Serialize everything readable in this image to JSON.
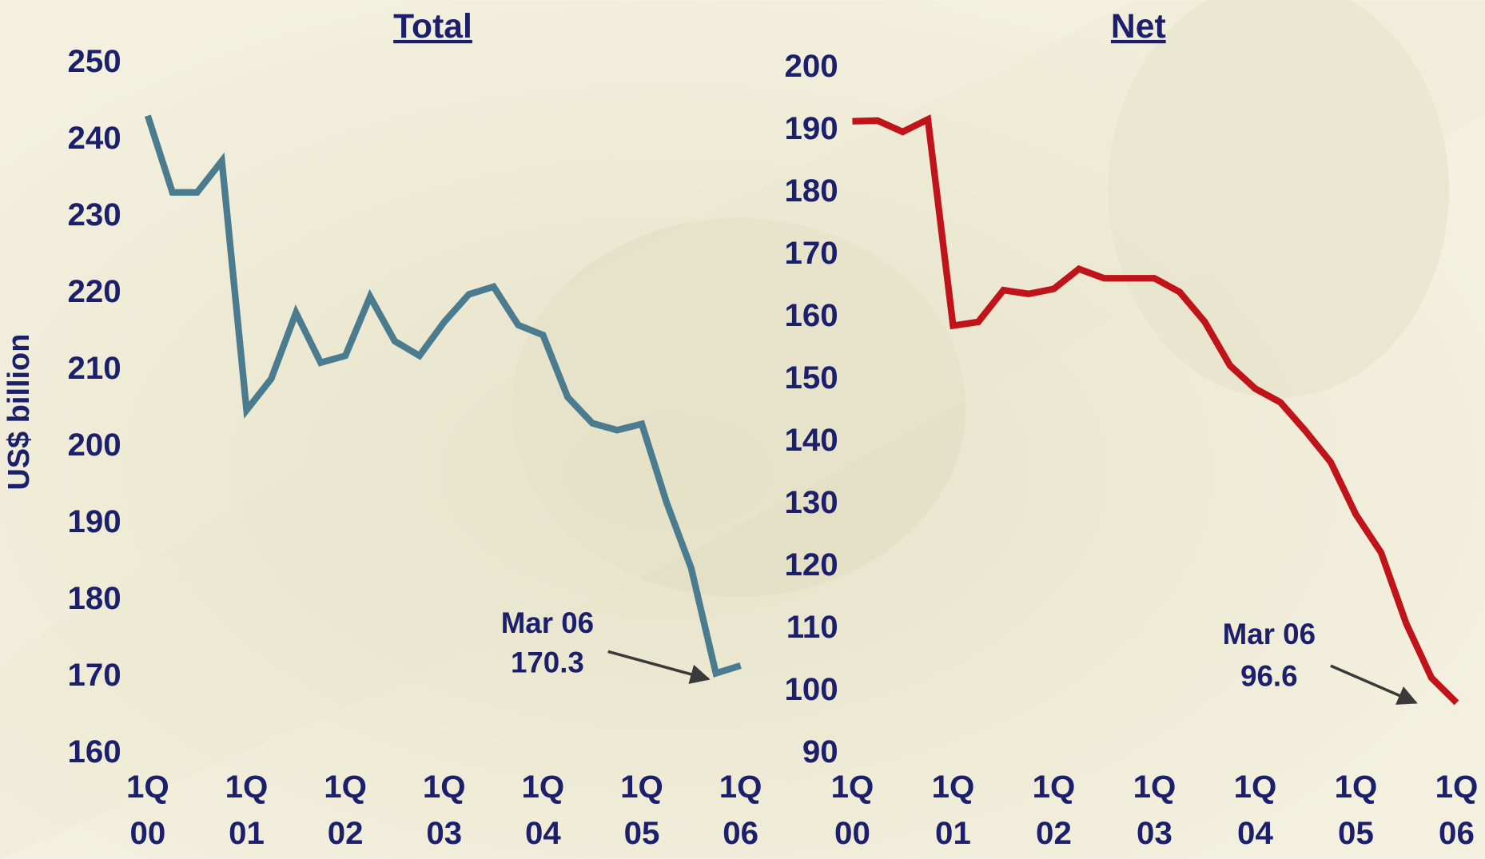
{
  "chart_data": [
    {
      "type": "line",
      "title": "Total",
      "y_label": "US$ billion",
      "categories": [
        "1Q 00",
        null,
        null,
        null,
        "1Q 01",
        null,
        null,
        null,
        "1Q 02",
        null,
        null,
        null,
        "1Q 03",
        null,
        null,
        null,
        "1Q 04",
        null,
        null,
        null,
        "1Q 05",
        null,
        null,
        null,
        "1Q 06"
      ],
      "series": [
        {
          "name": "Total",
          "color": "#4a7b8f",
          "values": [
            243.2,
            233.2,
            233.2,
            237.3,
            204.8,
            208.9,
            217.5,
            211,
            211.9,
            219.6,
            213.8,
            211.9,
            216.3,
            219.9,
            220.9,
            215.9,
            214.6,
            206.5,
            203.1,
            202.2,
            203,
            192.8,
            184.2,
            170.5,
            171.5
          ]
        }
      ],
      "ylim": [
        160,
        250
      ],
      "yticks": [
        160,
        170,
        180,
        190,
        200,
        210,
        220,
        230,
        240,
        250
      ],
      "annotation": [
        "Mar 06",
        "170.3"
      ]
    },
    {
      "type": "line",
      "title": "Net",
      "categories": [
        "1Q 00",
        null,
        null,
        null,
        "1Q 01",
        null,
        null,
        null,
        "1Q 02",
        null,
        null,
        null,
        "1Q 03",
        null,
        null,
        null,
        "1Q 04",
        null,
        null,
        null,
        "1Q 05",
        null,
        null,
        null,
        "1Q 06"
      ],
      "series": [
        {
          "name": "Net",
          "color": "#c0141a",
          "values": [
            191.5,
            191.6,
            189.8,
            191.8,
            158.7,
            159.3,
            164.4,
            163.8,
            164.6,
            167.8,
            166.3,
            166.3,
            166.3,
            164.1,
            159.3,
            152.3,
            148.6,
            146.4,
            141.8,
            136.8,
            128.4,
            122.3,
            110.9,
            102.2,
            98.2
          ]
        }
      ],
      "ylim": [
        90,
        200
      ],
      "yticks": [
        90,
        100,
        110,
        120,
        130,
        140,
        150,
        160,
        170,
        180,
        190,
        200
      ],
      "annotation": [
        "Mar 06",
        "96.6"
      ]
    }
  ]
}
